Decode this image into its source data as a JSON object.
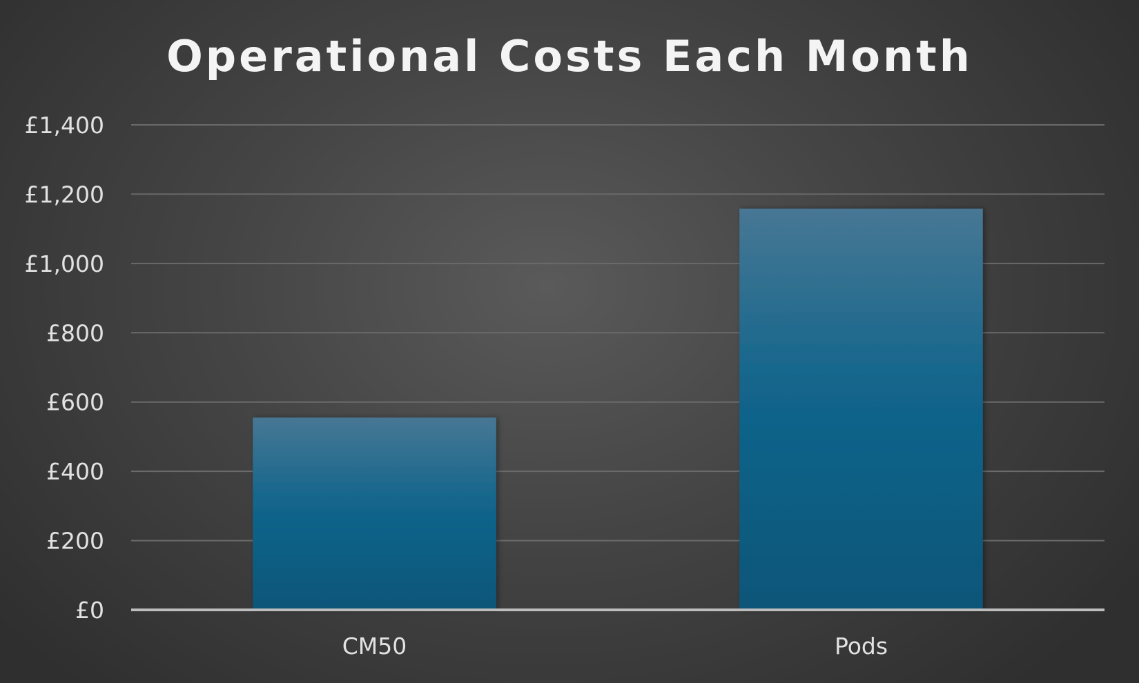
{
  "colors": {
    "bar_top": "#477794",
    "bar_bottom": "#0a5679",
    "gridline": "#6a6a6a",
    "axis_line": "#bdbdbd"
  },
  "chart_data": {
    "type": "bar",
    "title": "Operational Costs Each Month",
    "xlabel": "",
    "ylabel": "",
    "categories": [
      "CM50",
      "Pods"
    ],
    "series": [
      {
        "values": [
          555,
          1158
        ]
      }
    ],
    "ylim": [
      0,
      1400
    ],
    "yticks": [
      0,
      200,
      400,
      600,
      800,
      1000,
      1200,
      1400
    ],
    "ytick_labels": [
      "£0",
      "£200",
      "£400",
      "£600",
      "£800",
      "£1,000",
      "£1,200",
      "£1,400"
    ],
    "grid": true,
    "legend": "none"
  }
}
